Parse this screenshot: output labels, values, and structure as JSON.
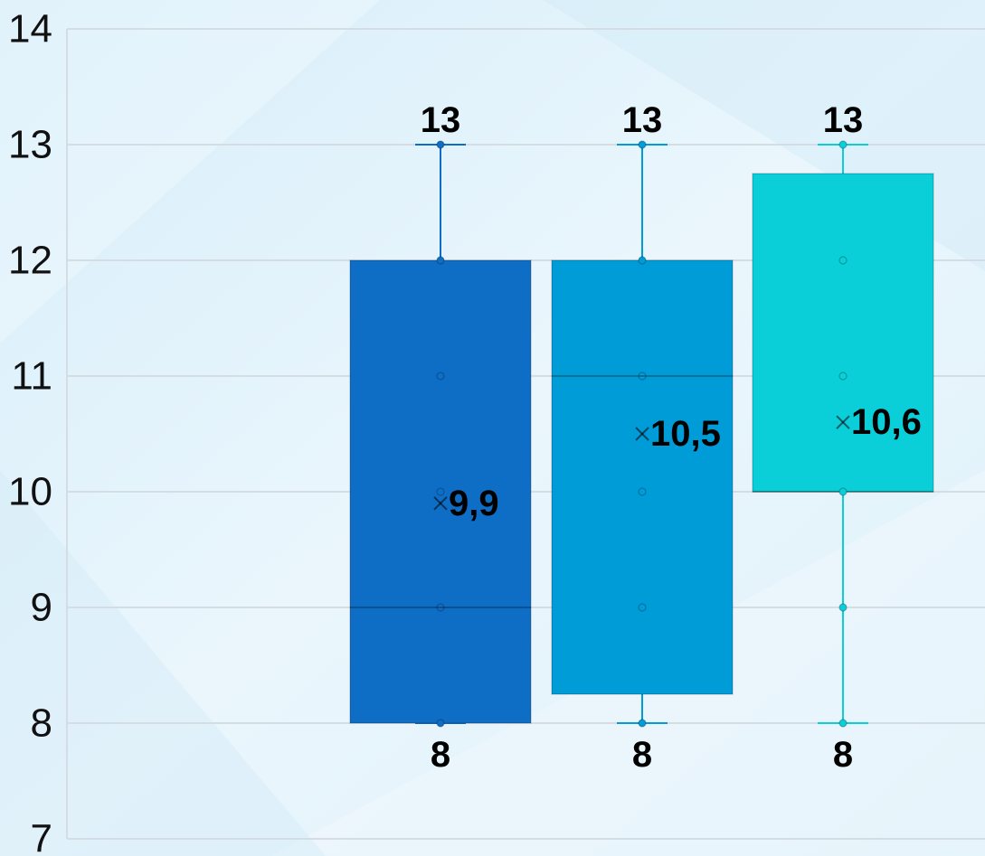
{
  "chart_data": {
    "type": "box",
    "ylim": [
      7,
      14
    ],
    "yticks": [
      7,
      8,
      9,
      10,
      11,
      12,
      13,
      14
    ],
    "ytick_labels": [
      "7",
      "8",
      "9",
      "10",
      "11",
      "12",
      "13",
      "14"
    ],
    "grid": true,
    "boxes": [
      {
        "color": "#0E6EC6",
        "min": 8,
        "q1": 8,
        "median": 9,
        "q3": 12,
        "max": 13,
        "mean": 9.9,
        "points": [
          8,
          9,
          10,
          11,
          12,
          13
        ],
        "max_label": "13",
        "min_label": "8",
        "mean_label": "9,9"
      },
      {
        "color": "#009CD8",
        "min": 8,
        "q1": 8.25,
        "median": 11,
        "q3": 12,
        "max": 13,
        "mean": 10.5,
        "points": [
          8,
          9,
          10,
          11,
          12,
          13
        ],
        "max_label": "13",
        "min_label": "8",
        "mean_label": "10,5"
      },
      {
        "color": "#0ACFD9",
        "min": 8,
        "q1": 10,
        "median": 10,
        "q3": 12.75,
        "max": 13,
        "mean": 10.6,
        "points": [
          8,
          9,
          10,
          11,
          12,
          13
        ],
        "max_label": "13",
        "min_label": "8",
        "mean_label": "10,6"
      }
    ]
  }
}
